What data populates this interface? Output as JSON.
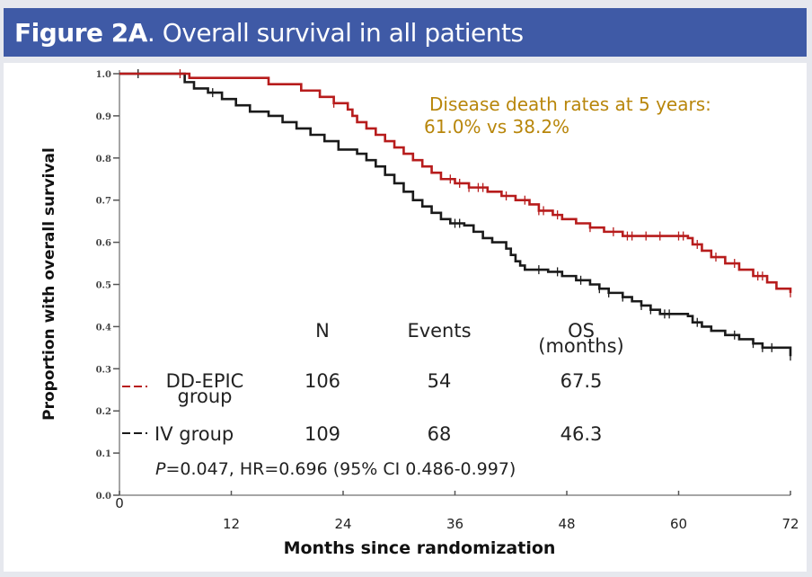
{
  "header": {
    "title_bold": "Figure 2A",
    "title_rest": ". Overall survival in all patients",
    "background": "#3f5aa6"
  },
  "chart_data": {
    "type": "line",
    "subtype": "kaplan-meier",
    "title": "Figure 2A. Overall survival in all patients",
    "xlabel": "Months since randomization",
    "ylabel": "Proportion with overall survival",
    "xlim": [
      0,
      72
    ],
    "ylim": [
      0,
      1.0
    ],
    "x_ticks": [
      0,
      12,
      24,
      36,
      48,
      60,
      72
    ],
    "x_tick_labels": [
      "0",
      "12",
      "24",
      "36",
      "48",
      "60",
      "72"
    ],
    "y_ticks": [
      0.0,
      0.1,
      0.2,
      0.3,
      0.4,
      0.5,
      0.6,
      0.7,
      0.8,
      0.9,
      1.0
    ],
    "y_tick_labels": [
      "0.0",
      "0.1",
      "0.2",
      "0.3",
      "0.4",
      "0.5",
      "0.6",
      "0.7",
      "0.8",
      "0.9",
      "1.0"
    ],
    "grid": false,
    "series": [
      {
        "name": "DD-EPIC group",
        "color": "#b71c1c",
        "steps": [
          [
            0,
            1.0
          ],
          [
            7.5,
            0.99
          ],
          [
            16,
            0.975
          ],
          [
            19.5,
            0.96
          ],
          [
            21.5,
            0.945
          ],
          [
            23,
            0.93
          ],
          [
            24.5,
            0.915
          ],
          [
            25,
            0.9
          ],
          [
            25.5,
            0.885
          ],
          [
            26.5,
            0.87
          ],
          [
            27.5,
            0.855
          ],
          [
            28.5,
            0.84
          ],
          [
            29.5,
            0.825
          ],
          [
            30.5,
            0.81
          ],
          [
            31.5,
            0.795
          ],
          [
            32.5,
            0.78
          ],
          [
            33.5,
            0.765
          ],
          [
            34.5,
            0.75
          ],
          [
            36,
            0.74
          ],
          [
            37.5,
            0.73
          ],
          [
            39.5,
            0.72
          ],
          [
            41,
            0.71
          ],
          [
            42.5,
            0.7
          ],
          [
            44,
            0.69
          ],
          [
            45,
            0.675
          ],
          [
            46.5,
            0.665
          ],
          [
            47.5,
            0.655
          ],
          [
            49,
            0.645
          ],
          [
            50.5,
            0.635
          ],
          [
            52,
            0.625
          ],
          [
            54,
            0.615
          ],
          [
            61,
            0.61
          ],
          [
            61.5,
            0.595
          ],
          [
            62.5,
            0.58
          ],
          [
            63.5,
            0.565
          ],
          [
            65,
            0.55
          ],
          [
            66.5,
            0.535
          ],
          [
            68,
            0.52
          ],
          [
            69.5,
            0.505
          ],
          [
            70.5,
            0.49
          ],
          [
            72,
            0.48
          ]
        ],
        "censor_times": [
          6.5,
          23,
          35.5,
          36.5,
          37.5,
          38.5,
          39,
          41.5,
          43.5,
          45,
          45.5,
          47,
          50.5,
          53,
          54.5,
          55,
          56.5,
          58,
          60,
          60.5,
          62,
          64,
          66,
          68.5,
          69,
          72
        ],
        "N": "106",
        "events": "54",
        "os_months": "67.5"
      },
      {
        "name": "IV group",
        "color": "#1a1a1a",
        "steps": [
          [
            0,
            1.0
          ],
          [
            7,
            0.98
          ],
          [
            8,
            0.965
          ],
          [
            9.5,
            0.955
          ],
          [
            11,
            0.94
          ],
          [
            12.5,
            0.925
          ],
          [
            14,
            0.91
          ],
          [
            16,
            0.9
          ],
          [
            17.5,
            0.885
          ],
          [
            19,
            0.87
          ],
          [
            20.5,
            0.855
          ],
          [
            22,
            0.84
          ],
          [
            23.5,
            0.82
          ],
          [
            25.5,
            0.81
          ],
          [
            26.5,
            0.795
          ],
          [
            27.5,
            0.78
          ],
          [
            28.5,
            0.76
          ],
          [
            29.5,
            0.74
          ],
          [
            30.5,
            0.72
          ],
          [
            31.5,
            0.7
          ],
          [
            32.5,
            0.685
          ],
          [
            33.5,
            0.67
          ],
          [
            34.5,
            0.655
          ],
          [
            35.5,
            0.645
          ],
          [
            37,
            0.64
          ],
          [
            38,
            0.625
          ],
          [
            39,
            0.61
          ],
          [
            40,
            0.6
          ],
          [
            41.5,
            0.585
          ],
          [
            42,
            0.57
          ],
          [
            42.5,
            0.555
          ],
          [
            43,
            0.545
          ],
          [
            43.5,
            0.535
          ],
          [
            46,
            0.53
          ],
          [
            47.5,
            0.52
          ],
          [
            49,
            0.51
          ],
          [
            50.5,
            0.5
          ],
          [
            51.5,
            0.49
          ],
          [
            52.5,
            0.48
          ],
          [
            54,
            0.47
          ],
          [
            55,
            0.46
          ],
          [
            56,
            0.45
          ],
          [
            57,
            0.44
          ],
          [
            58,
            0.43
          ],
          [
            61,
            0.425
          ],
          [
            61.5,
            0.41
          ],
          [
            62.5,
            0.4
          ],
          [
            63.5,
            0.39
          ],
          [
            65,
            0.38
          ],
          [
            66.5,
            0.37
          ],
          [
            68,
            0.36
          ],
          [
            69,
            0.35
          ],
          [
            72,
            0.33
          ]
        ],
        "censor_times": [
          2,
          10,
          36,
          36.5,
          45,
          47,
          49.5,
          51.5,
          52.5,
          54,
          56,
          57,
          58.5,
          59,
          62,
          66,
          68,
          69,
          70,
          72
        ],
        "N": "109",
        "events": "68",
        "os_months": "46.3"
      }
    ],
    "legend": {
      "placement": "bottom-left",
      "columns": [
        "N",
        "Events",
        "OS",
        "(months)"
      ],
      "rows": [
        {
          "label_line1": "DD-EPIC",
          "label_line2": "group",
          "N": "106",
          "events": "54",
          "os": "67.5"
        },
        {
          "label_line1": "IV group",
          "label_line2": "",
          "N": "109",
          "events": "68",
          "os": "46.3"
        }
      ]
    },
    "statistics": {
      "p_label": "P",
      "text": "=0.047, HR=0.696 (95% CI 0.486-0.997)"
    },
    "annotation": {
      "line1": "Disease death rates at 5 years:",
      "line2": "61.0% vs 38.2%",
      "color": "#b8860b",
      "placement": "top-right"
    }
  }
}
